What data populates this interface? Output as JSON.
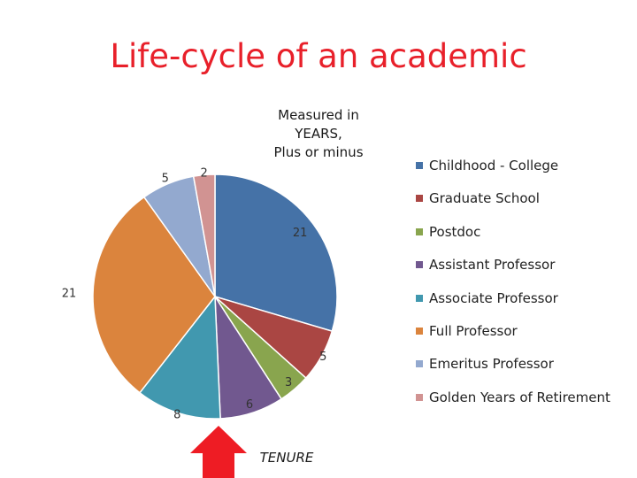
{
  "title": "Life-cycle of an academic",
  "subtitle_lines": [
    "Measured in",
    "YEARS,",
    "Plus or minus"
  ],
  "annotation": "TENURE",
  "chart_data": {
    "type": "pie",
    "unit": "years",
    "start_angle": "12 o'clock, clockwise",
    "slices": [
      {
        "name": "Childhood - College",
        "value": 21,
        "color": "#4572a7"
      },
      {
        "name": "Graduate School",
        "value": 5,
        "color": "#aa4643"
      },
      {
        "name": "Postdoc",
        "value": 3,
        "color": "#89a54e"
      },
      {
        "name": "Assistant Professor",
        "value": 6,
        "color": "#71588f"
      },
      {
        "name": "Associate Professor",
        "value": 8,
        "color": "#4198af"
      },
      {
        "name": "Full Professor",
        "value": 21,
        "color": "#db843d"
      },
      {
        "name": "Emeritus Professor",
        "value": 5,
        "color": "#93a9cf"
      },
      {
        "name": "Golden Years of Retirement",
        "value": 2,
        "color": "#d19392"
      }
    ],
    "legend_position": "right",
    "arrow_color": "#ee1c24"
  }
}
